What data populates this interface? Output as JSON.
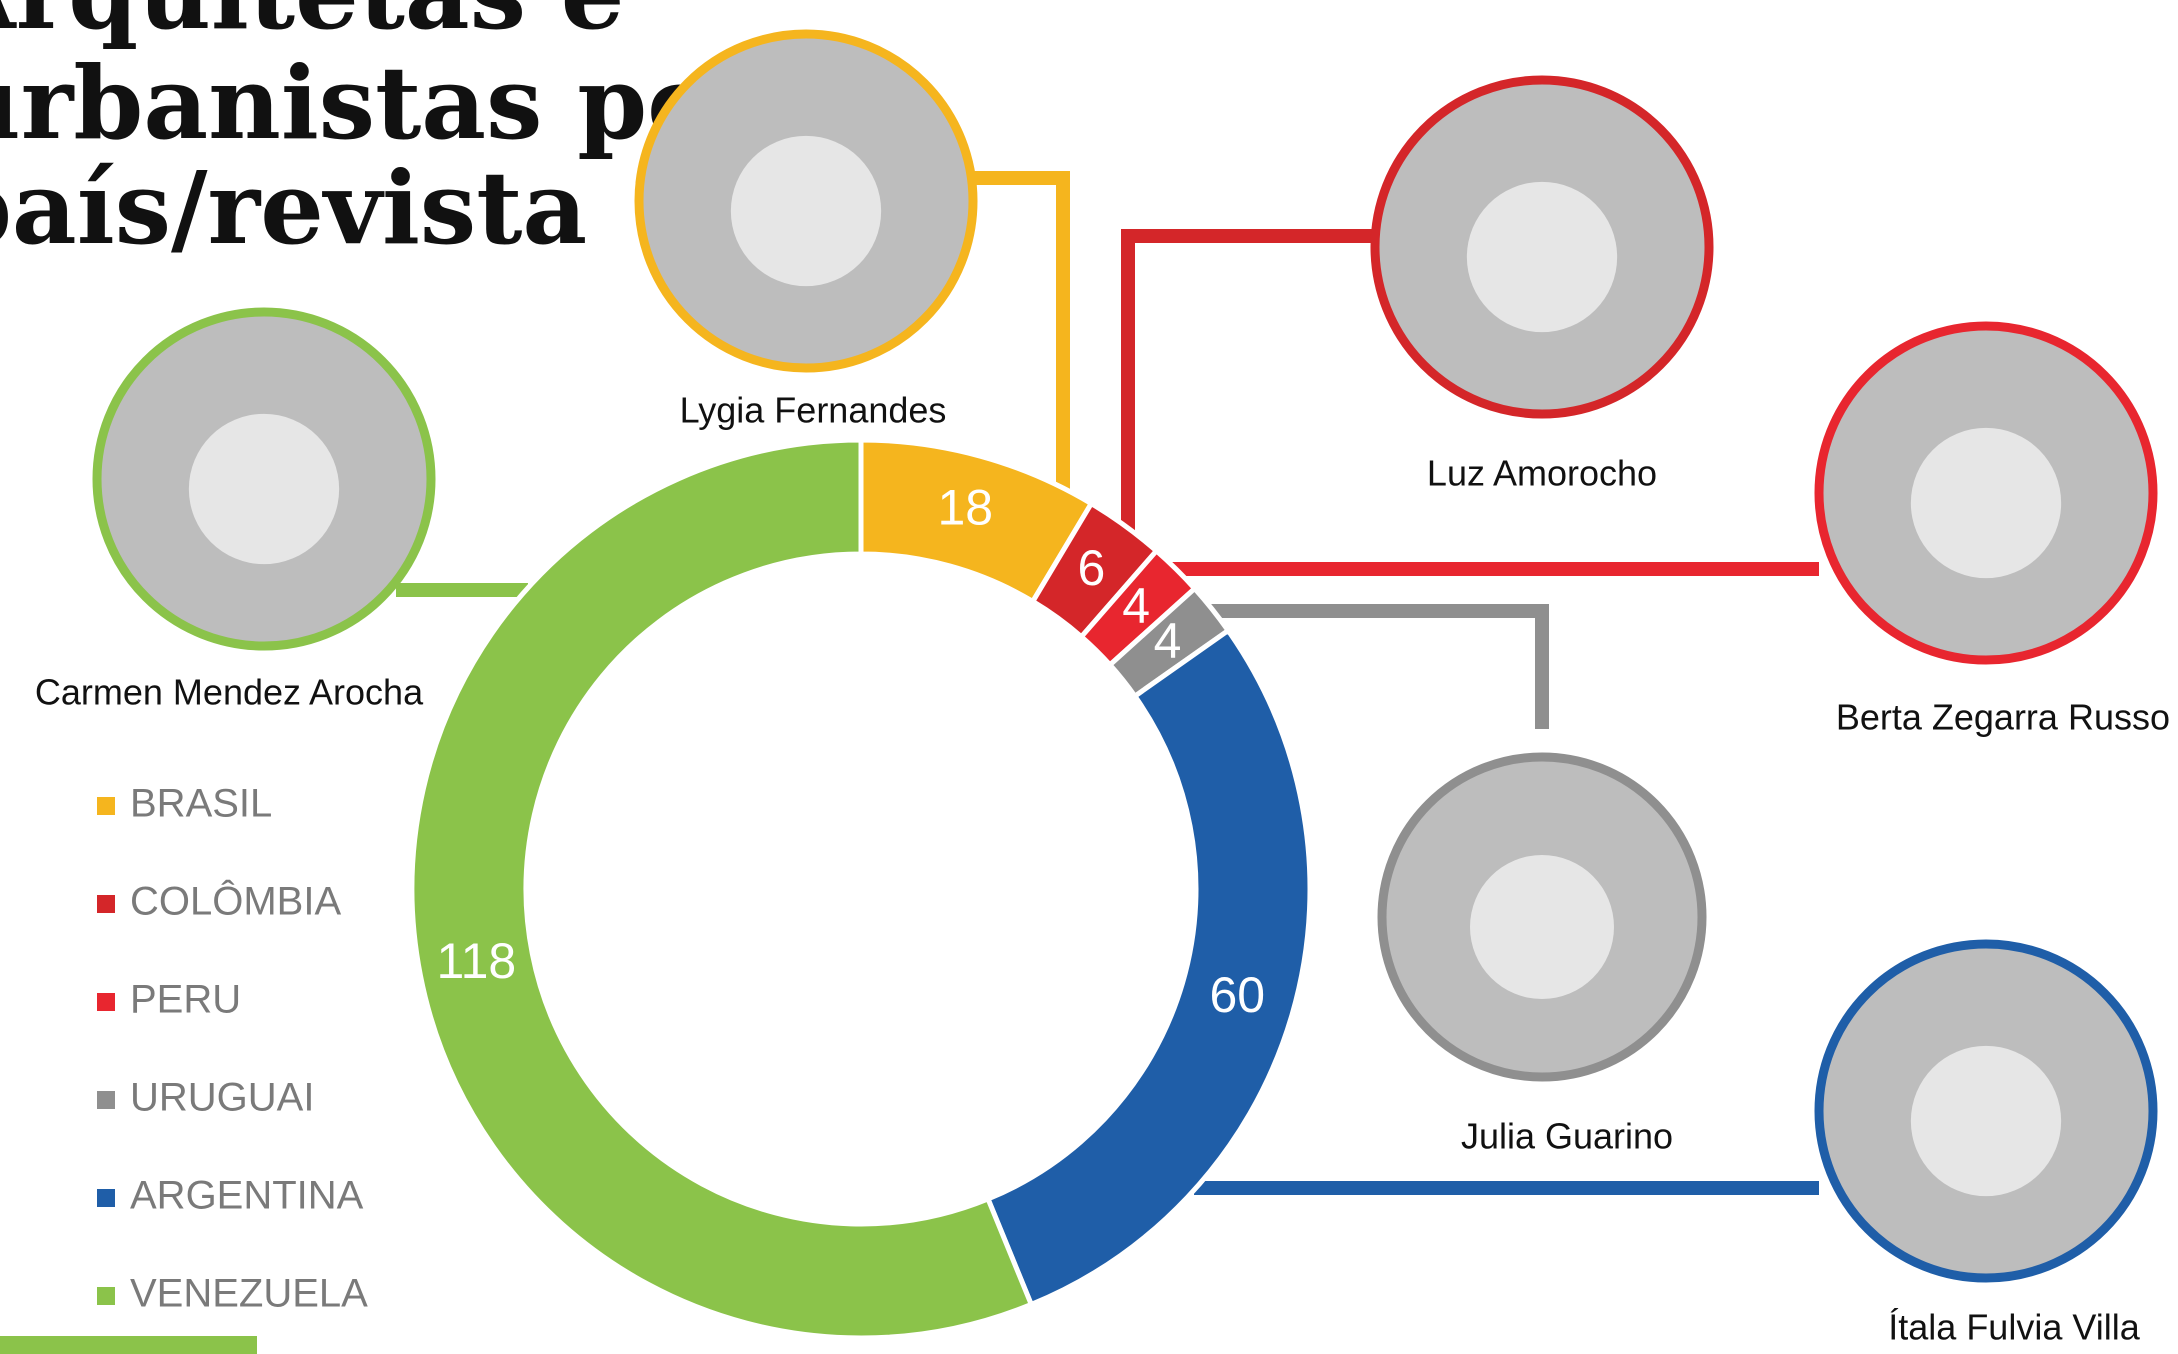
{
  "chart_data": {
    "type": "donut",
    "title": [
      "Arquitetas e",
      "urbanistas por",
      "país/revista"
    ],
    "categories": [
      "BRASIL",
      "COLÔMBIA",
      "PERU",
      "URUGUAI",
      "ARGENTINA",
      "VENEZUELA"
    ],
    "values": [
      18,
      6,
      4,
      4,
      60,
      118
    ],
    "colors": [
      "#f5b51e",
      "#d42629",
      "#e8262f",
      "#8f8f8f",
      "#1f5ea8",
      "#8bc34a"
    ],
    "annotations": [
      "Lygia Fernandes",
      "Luz Amorocho",
      "Berta Zegarra Russo",
      "Julia Guarino",
      "Ítala Fulvia Villa",
      "Carmen Mendez Arocha"
    ],
    "legend": "left"
  }
}
